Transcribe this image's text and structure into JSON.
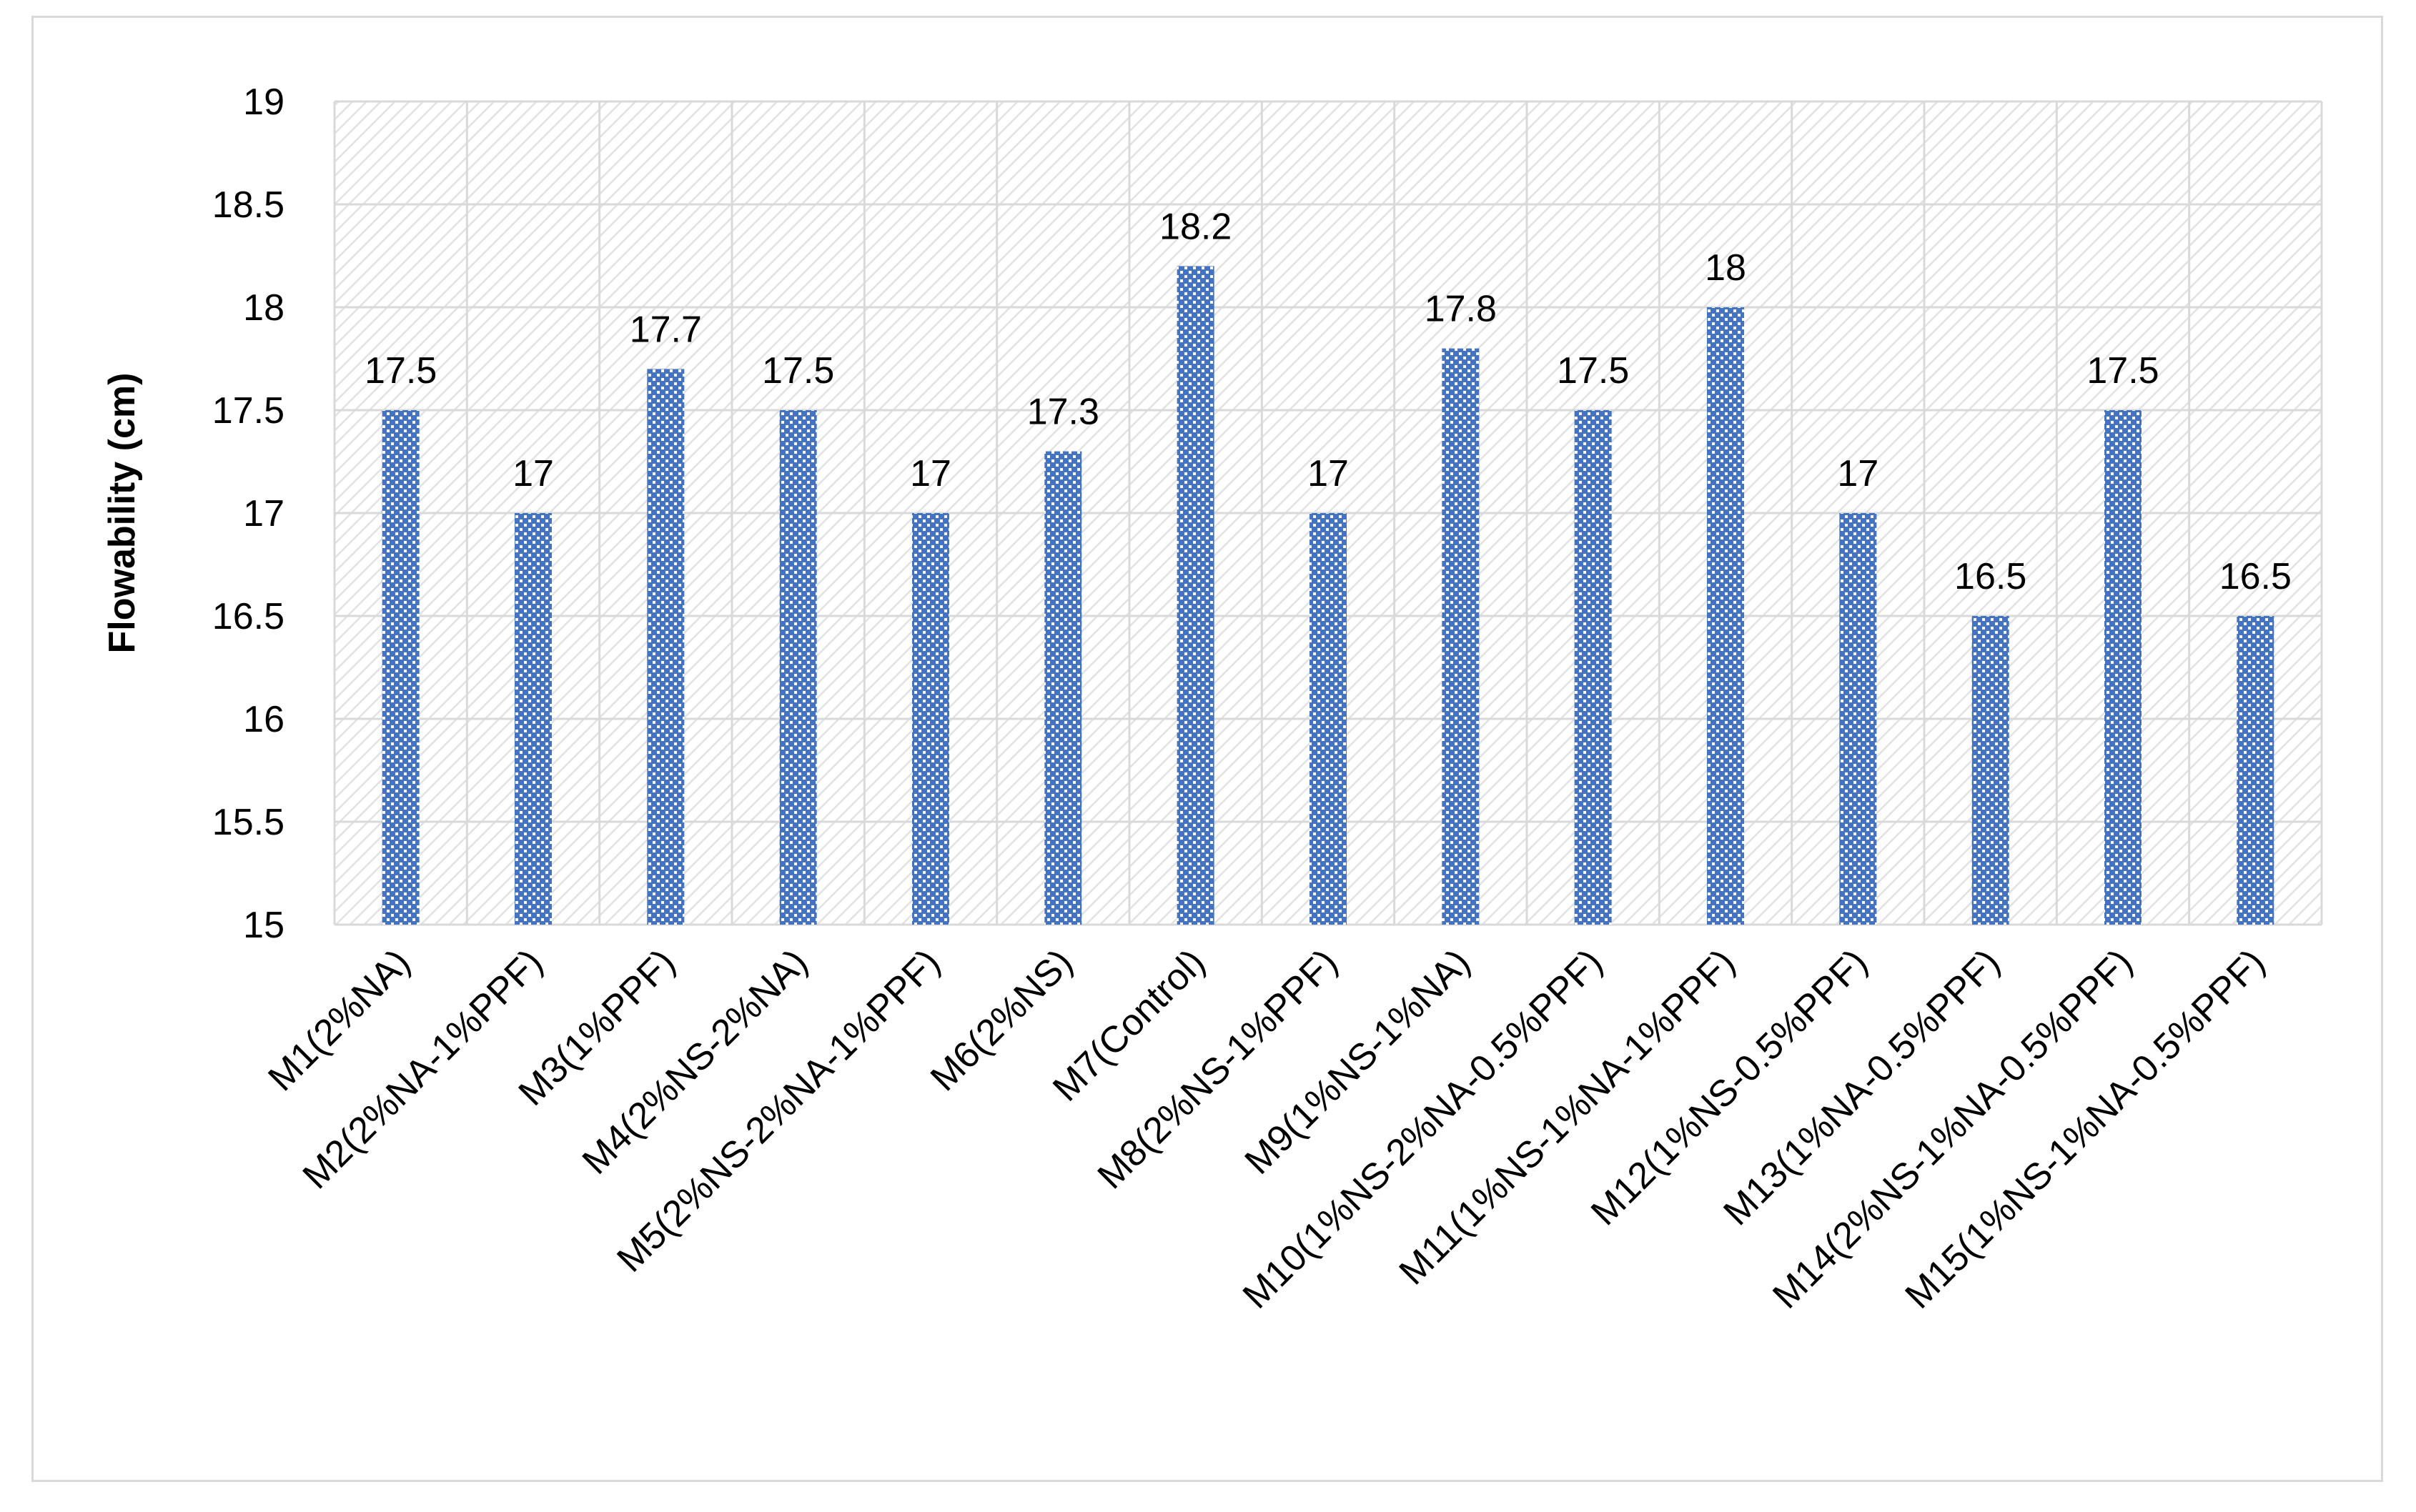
{
  "chart_data": {
    "type": "bar",
    "title": "",
    "xlabel": "",
    "ylabel": "Flowability (cm)",
    "ylim": [
      15,
      19
    ],
    "yticks": [
      "15",
      "15.5",
      "16",
      "16.5",
      "17",
      "17.5",
      "18",
      "18.5",
      "19"
    ],
    "grid": true,
    "legend": "none",
    "categories": [
      "M1(2%NA)",
      "M2(2%NA-1%PPF)",
      "M3(1%PPF)",
      "M4(2%NS-2%NA)",
      "M5(2%NS-2%NA-1%PPF)",
      "M6(2%NS)",
      "M7(Control)",
      "M8(2%NS-1%PPF)",
      "M9(1%NS-1%NA)",
      "M10(1%NS-2%NA-0.5%PPF)",
      "M11(1%NS-1%NA-1%PPF)",
      "M12(1%NS-0.5%PPF)",
      "M13(1%NA-0.5%PPF)",
      "M14(2%NS-1%NA-0.5%PPF)",
      "M15(1%NS-1%NA-0.5%PPF)"
    ],
    "values": [
      17.5,
      17,
      17.7,
      17.5,
      17,
      17.3,
      18.2,
      17,
      17.8,
      17.5,
      18,
      17,
      16.5,
      17.5,
      16.5
    ],
    "data_labels": [
      "17.5",
      "17",
      "17.7",
      "17.5",
      "17",
      "17.3",
      "18.2",
      "17",
      "17.8",
      "17.5",
      "18",
      "17",
      "16.5",
      "17.5",
      "16.5"
    ],
    "colors": {
      "bar": "#4472c4",
      "bar_dots": "#ffffff",
      "grid": "#d9d9d9",
      "plot_hatch": "#e2e2e2"
    }
  }
}
